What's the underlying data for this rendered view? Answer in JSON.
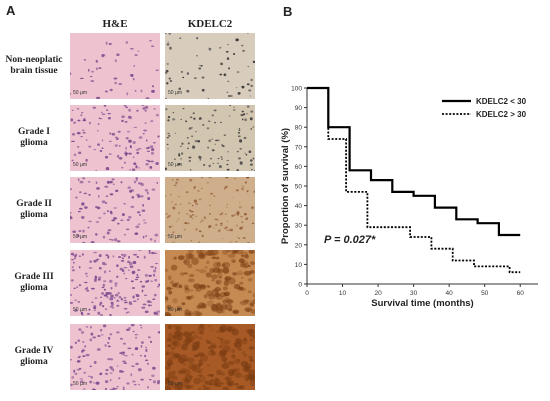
{
  "panel_a": {
    "letter": "A",
    "columns": [
      "H&E",
      "KDELC2"
    ],
    "rows": [
      {
        "label": [
          "Non-neoplatic",
          "brain tissue"
        ],
        "he_scale": "50 µm",
        "kd_scale": "50 µm"
      },
      {
        "label": [
          "Grade I",
          "glioma"
        ],
        "he_scale": "50 µm",
        "kd_scale": "50 µm"
      },
      {
        "label": [
          "Grade II",
          "glioma"
        ],
        "he_scale": "50 µm",
        "kd_scale": "50 µm"
      },
      {
        "label": [
          "Grade III",
          "glioma"
        ],
        "he_scale": "50 µm",
        "kd_scale": "50 µm"
      },
      {
        "label": [
          "Grade IV",
          "glioma"
        ],
        "he_scale": "50 µm",
        "kd_scale": "50 µm"
      }
    ],
    "colors": {
      "he_background": "#efc2cf",
      "he_nuclei": "#7b4a8e",
      "kdelc2_background": [
        "#d8cdbd",
        "#d3c6b1",
        "#cfae8c",
        "#c48a52",
        "#a85a26"
      ],
      "kdelc2_stain": "#7a3c12"
    }
  },
  "chart_data": {
    "panel_letter": "B",
    "type": "line",
    "xlabel": "Survival time (months)",
    "ylabel": "Proportion of survival (%)",
    "xlim": [
      0,
      65
    ],
    "ylim": [
      0,
      100
    ],
    "x_ticks": [
      0,
      10,
      20,
      30,
      40,
      50,
      60
    ],
    "y_ticks": [
      0,
      10,
      20,
      30,
      40,
      50,
      60,
      70,
      80,
      90,
      100
    ],
    "annotation": "P = 0.027*",
    "legend_position": "top-right",
    "step": true,
    "series": [
      {
        "name": "KDELC2 < 30",
        "style": "solid",
        "color": "#000000",
        "x": [
          0,
          6,
          6,
          12,
          12,
          18,
          18,
          24,
          24,
          30,
          30,
          36,
          36,
          42,
          42,
          48,
          48,
          54,
          54,
          60
        ],
        "y": [
          100,
          100,
          80,
          80,
          58,
          58,
          53,
          53,
          47,
          47,
          45,
          45,
          39,
          39,
          33,
          33,
          31,
          31,
          25,
          25
        ]
      },
      {
        "name": "KDELC2 > 30",
        "style": "dotted",
        "color": "#000000",
        "x": [
          0,
          6,
          6,
          11,
          11,
          17,
          17,
          29,
          29,
          35,
          35,
          41,
          41,
          47,
          47,
          53,
          53,
          57,
          57,
          60
        ],
        "y": [
          100,
          100,
          74,
          74,
          47,
          47,
          29,
          29,
          24,
          24,
          18,
          18,
          12,
          12,
          9,
          9,
          9,
          9,
          6,
          6
        ]
      }
    ]
  }
}
